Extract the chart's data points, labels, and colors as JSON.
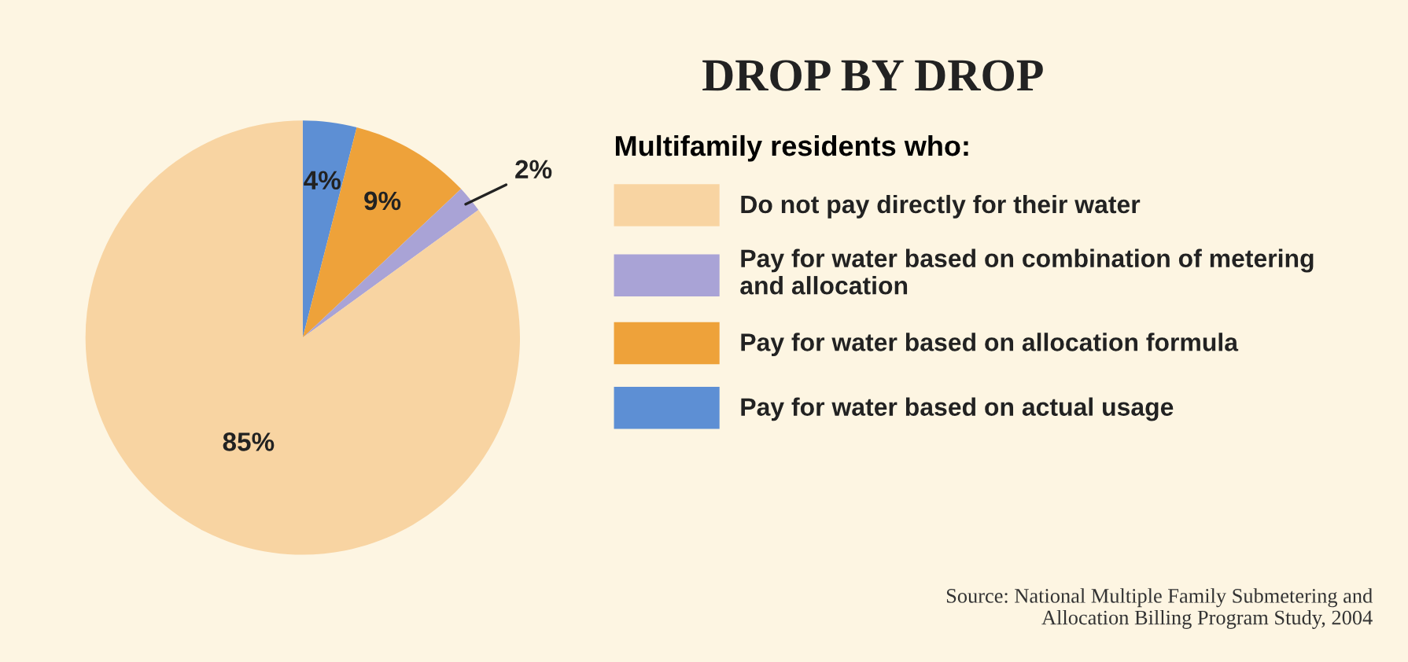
{
  "chart_data": {
    "type": "pie",
    "title": "DROP BY DROP",
    "legend_title": "Multifamily residents who:",
    "categories": [
      "Do not pay directly for their water",
      "Pay for water based on combination of metering\nand allocation",
      "Pay for water based on allocation formula",
      "Pay for water based on actual usage"
    ],
    "values": [
      85,
      2,
      9,
      4
    ],
    "colors": [
      "#f8d4a2",
      "#a9a3d6",
      "#eea23a",
      "#5d8fd4"
    ],
    "legend": "right",
    "value_labels": [
      "85%",
      "2%",
      "9%",
      "4%"
    ],
    "annotations": [
      "Source: National Multiple Family Submetering and\nAllocation Billing Program Study, 2004"
    ]
  }
}
